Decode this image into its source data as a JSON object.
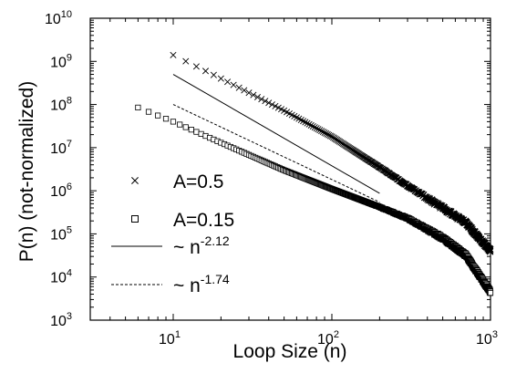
{
  "chart_data": {
    "type": "scatter",
    "title": "",
    "xlabel": "Loop Size (n)",
    "ylabel": "P(n)  (not-normalized)",
    "xscale": "log",
    "yscale": "log",
    "xlim": [
      3,
      1000
    ],
    "ylim": [
      1000,
      10000000000
    ],
    "grid": false,
    "legend_position": "lower-left",
    "x_ticks": [
      {
        "value": 10,
        "base": "10",
        "exp": "1"
      },
      {
        "value": 100,
        "base": "10",
        "exp": "2"
      },
      {
        "value": 1000,
        "base": "10",
        "exp": "3"
      }
    ],
    "y_ticks": [
      {
        "value": 1000,
        "base": "10",
        "exp": "3"
      },
      {
        "value": 10000,
        "base": "10",
        "exp": "4"
      },
      {
        "value": 100000,
        "base": "10",
        "exp": "5"
      },
      {
        "value": 1000000,
        "base": "10",
        "exp": "6"
      },
      {
        "value": 10000000,
        "base": "10",
        "exp": "7"
      },
      {
        "value": 100000000,
        "base": "10",
        "exp": "8"
      },
      {
        "value": 1000000000,
        "base": "10",
        "exp": "9"
      },
      {
        "value": 10000000000,
        "base": "10",
        "exp": "10"
      }
    ],
    "series": [
      {
        "name": "A=0.5",
        "marker": "x",
        "x_start": 10,
        "x_end": 1000,
        "step": 2,
        "anchors": [
          [
            10,
            1400000000
          ],
          [
            20,
            400000000
          ],
          [
            50,
            72000000
          ],
          [
            100,
            18000000
          ],
          [
            200,
            3500000
          ],
          [
            300,
            1300000
          ],
          [
            500,
            400000
          ],
          [
            700,
            180000
          ],
          [
            1000,
            40000
          ]
        ]
      },
      {
        "name": "A=0.15",
        "marker": "square",
        "x_start": 6,
        "x_end": 1000,
        "step": 1,
        "anchors": [
          [
            6,
            85000000
          ],
          [
            10,
            40000000
          ],
          [
            20,
            13000000
          ],
          [
            50,
            3000000
          ],
          [
            100,
            1100000
          ],
          [
            200,
            420000
          ],
          [
            300,
            230000
          ],
          [
            500,
            80000
          ],
          [
            700,
            32000
          ],
          [
            1000,
            4500
          ]
        ]
      },
      {
        "name": "~ n",
        "exponent_label": "-2.12",
        "line": "solid",
        "exponent": -2.12,
        "x_range": [
          10,
          200
        ],
        "y_at_start": 500000000
      },
      {
        "name": "~ n",
        "exponent_label": "-1.74",
        "line": "dashed",
        "exponent": -1.74,
        "x_range": [
          10,
          200
        ],
        "y_at_start": 100000000
      }
    ]
  }
}
